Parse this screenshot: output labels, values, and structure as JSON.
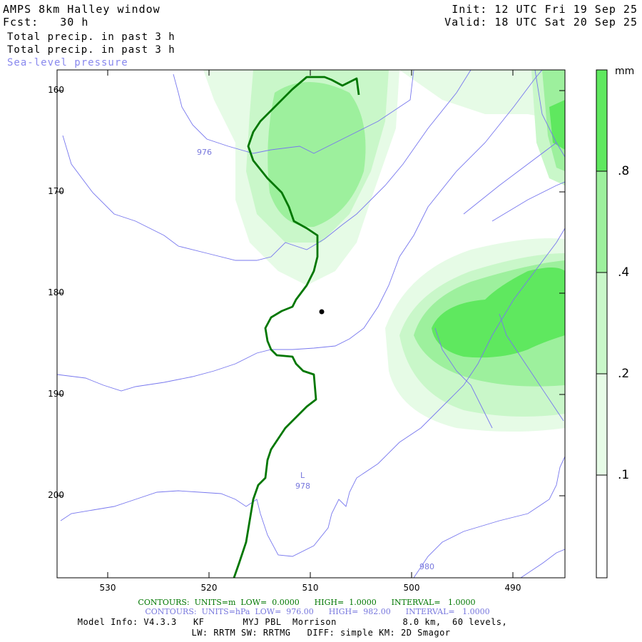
{
  "header": {
    "title": "AMPS 8km Halley window",
    "forecast": "Fcst:   30 h",
    "init": "Init: 12 UTC Fri 19 Sep 25",
    "valid": "Valid: 18 UTC Sat 20 Sep 25",
    "field1": "Total precip. in past 3 h",
    "field2": "Total precip. in past 3 h",
    "field3": "Sea-level pressure"
  },
  "axes": {
    "y_ticks": [
      "160",
      "170",
      "180",
      "190",
      "200"
    ],
    "x_ticks": [
      "530",
      "520",
      "510",
      "500",
      "490"
    ]
  },
  "colorbar": {
    "unit": "mm",
    "labels": [
      ".8",
      ".4",
      ".2",
      ".1"
    ],
    "colors": [
      "#ffffff",
      "#e6fbe6",
      "#c9f7c9",
      "#9df09d",
      "#5fe85f"
    ]
  },
  "pressure_labels": {
    "p976": "976",
    "low_mark": "L",
    "low_value": "978",
    "p980": "980"
  },
  "footer": {
    "contours1": "CONTOURS:  UNITS=m  LOW=  0.0000      HIGH=  1.0000      INTERVAL=   1.0000",
    "contours2": "CONTOURS:  UNITS=hPa  LOW=  976.00      HIGH=  982.00      INTERVAL=   1.0000",
    "model_info": "Model Info: V4.3.3   KF       MYJ PBL  Morrison            8.0 km,  60 levels,",
    "physics": "LW: RRTM SW: RRTMG   DIFF: simple KM: 2D Smagor"
  },
  "colors": {
    "coast": "#007700",
    "isobar": "#7777ee",
    "contour_text_green": "#007700",
    "contour_text_blue": "#7777dd"
  }
}
